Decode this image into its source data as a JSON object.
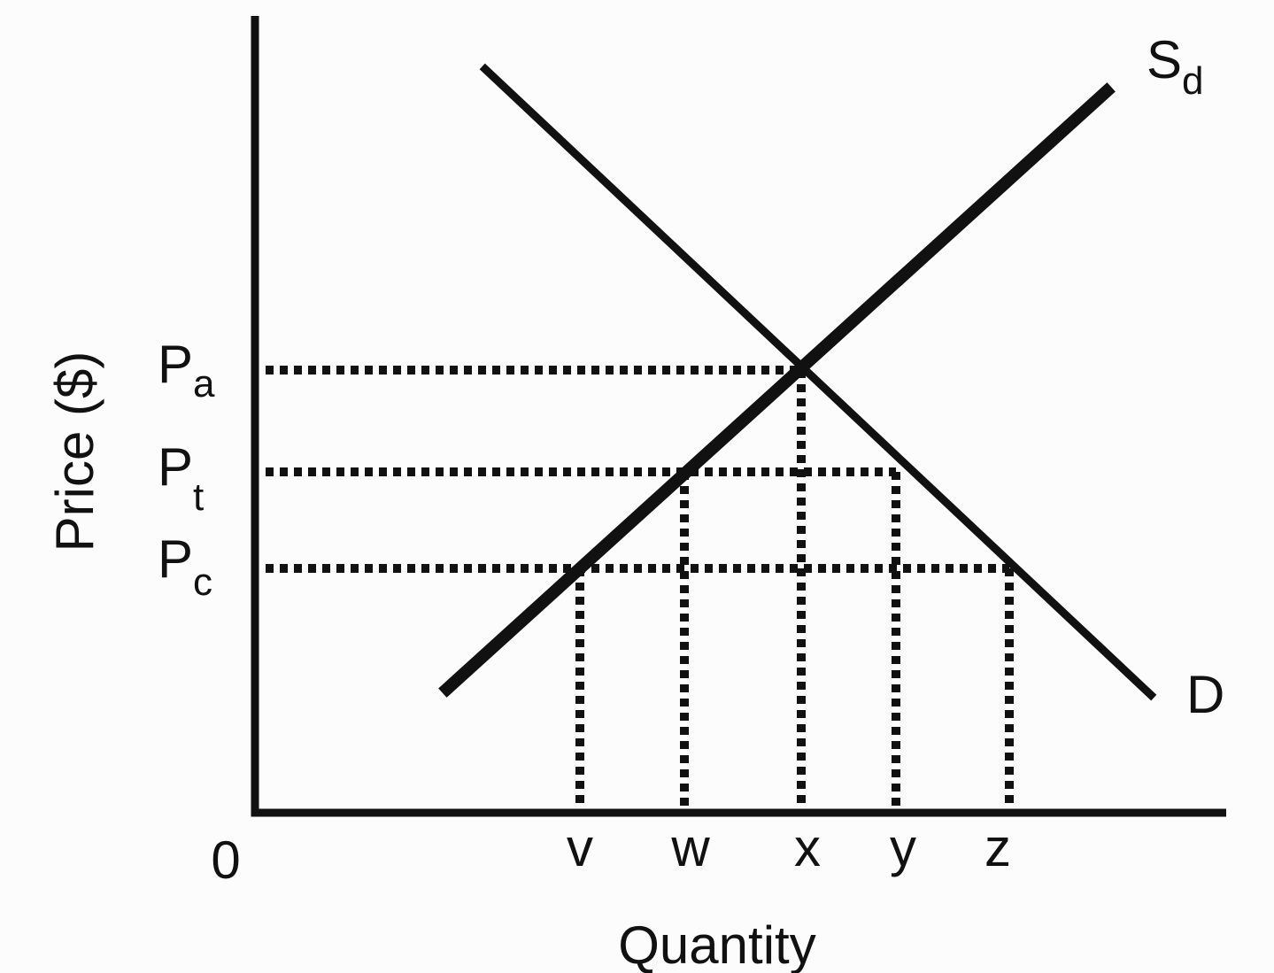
{
  "axes": {
    "x_label": "Quantity",
    "y_label": "Price ($)",
    "origin": "0"
  },
  "price_labels": [
    {
      "main": "P",
      "sub": "a"
    },
    {
      "main": "P",
      "sub": "t"
    },
    {
      "main": "P",
      "sub": "c"
    }
  ],
  "quantity_labels": [
    "v",
    "w",
    "x",
    "y",
    "z"
  ],
  "curves": {
    "supply": {
      "main": "S",
      "sub": "d"
    },
    "demand": "D"
  }
}
